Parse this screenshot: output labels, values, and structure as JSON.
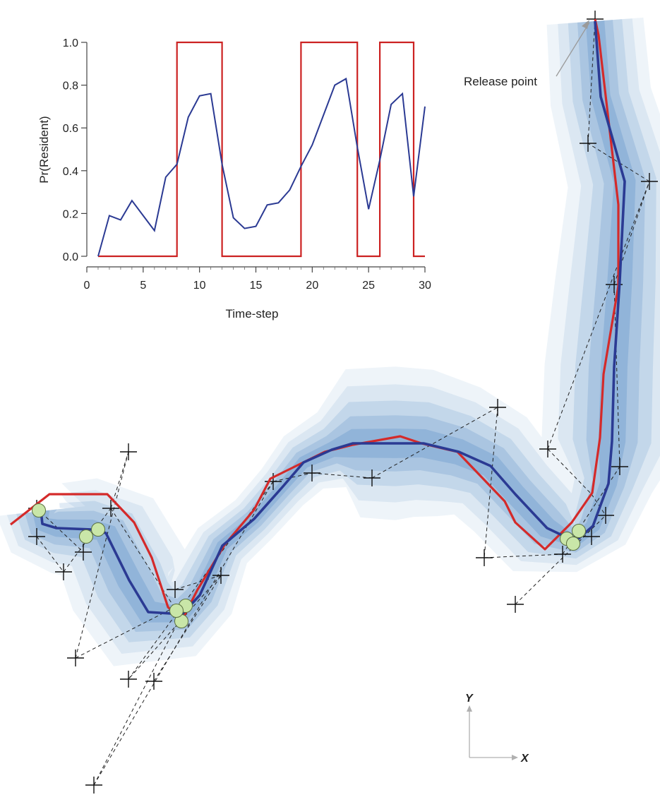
{
  "inset": {
    "xlabel": "Time-step",
    "ylabel": "Pr(Resident)"
  },
  "map": {
    "annotation": "Release point",
    "axis_x": "X",
    "axis_y": "Y"
  },
  "colors": {
    "probability_line": "#2b3a93",
    "state_line": "#cc2222",
    "track_estimate": "#2b3a93",
    "track_true": "#d42a2a",
    "confidence_band": "#5b8fc6",
    "observation_marker": "#111111",
    "resident_marker_fill": "#c9e6a8"
  },
  "chart_data": [
    {
      "type": "line",
      "xlabel": "Time-step",
      "ylabel": "Pr(Resident)",
      "xlim": [
        0,
        31
      ],
      "ylim": [
        0,
        1.05
      ],
      "xticks": [
        "0",
        "5",
        "10",
        "15",
        "20",
        "25",
        "30"
      ],
      "yticks": [
        "0.0",
        "0.2",
        "0.4",
        "0.6",
        "0.8",
        "1.0"
      ],
      "series": [
        {
          "style": "estimated probability",
          "color": "#2b3a93",
          "x": [
            1,
            2,
            3,
            4,
            5,
            6,
            7,
            8,
            9,
            10,
            11,
            12,
            13,
            14,
            15,
            16,
            17,
            18,
            19,
            20,
            21,
            22,
            23,
            24,
            25,
            26,
            27,
            28,
            29,
            30
          ],
          "y": [
            0.0,
            0.19,
            0.17,
            0.26,
            0.19,
            0.12,
            0.37,
            0.43,
            0.65,
            0.75,
            0.76,
            0.43,
            0.18,
            0.13,
            0.14,
            0.24,
            0.25,
            0.31,
            0.42,
            0.52,
            0.66,
            0.8,
            0.83,
            0.51,
            0.22,
            0.45,
            0.71,
            0.76,
            0.28,
            0.7
          ]
        },
        {
          "style": "true state (step)",
          "color": "#cc2222",
          "x": [
            1,
            8,
            8,
            12,
            12,
            19,
            19,
            24,
            24,
            26,
            26,
            29,
            29,
            30
          ],
          "y": [
            0,
            0,
            1,
            1,
            0,
            0,
            1,
            1,
            0,
            0,
            1,
            1,
            0,
            0
          ]
        }
      ]
    },
    {
      "type": "scatter",
      "xlabel": "X",
      "ylabel": "Y",
      "annotations": [
        "Release point"
      ],
      "series": [
        {
          "role": "observations",
          "points": [
            [
              843,
              27
            ],
            [
              833,
              203
            ],
            [
              920,
              257
            ],
            [
              870,
              403
            ],
            [
              705,
              577
            ],
            [
              776,
              636
            ],
            [
              878,
              661
            ],
            [
              858,
              730
            ],
            [
              838,
              760
            ],
            [
              797,
              785
            ],
            [
              686,
              790
            ],
            [
              730,
              856
            ],
            [
              527,
              677
            ],
            [
              442,
              670
            ],
            [
              387,
              682
            ],
            [
              313,
              815
            ],
            [
              248,
              835
            ],
            [
              182,
              640
            ],
            [
              157,
              720
            ],
            [
              52,
              720
            ],
            [
              52,
              760
            ],
            [
              118,
              782
            ],
            [
              90,
              810
            ],
            [
              107,
              932
            ],
            [
              182,
              962
            ],
            [
              218,
              965
            ],
            [
              133,
              1112
            ]
          ]
        },
        {
          "role": "estimated track",
          "points": [
            [
              843,
              30
            ],
            [
              851,
              137
            ],
            [
              885,
              257
            ],
            [
              878,
              397
            ],
            [
              870,
              520
            ],
            [
              867,
              625
            ],
            [
              862,
              685
            ],
            [
              840,
              745
            ],
            [
              815,
              767
            ],
            [
              775,
              748
            ],
            [
              730,
              700
            ],
            [
              695,
              660
            ],
            [
              650,
              640
            ],
            [
              600,
              628
            ],
            [
              560,
              628
            ],
            [
              500,
              628
            ],
            [
              470,
              637
            ],
            [
              430,
              655
            ],
            [
              400,
              690
            ],
            [
              360,
              735
            ],
            [
              315,
              773
            ],
            [
              283,
              843
            ],
            [
              258,
              870
            ],
            [
              210,
              867
            ],
            [
              183,
              822
            ],
            [
              150,
              755
            ],
            [
              130,
              750
            ],
            [
              80,
              748
            ],
            [
              60,
              742
            ],
            [
              58,
              724
            ]
          ]
        },
        {
          "role": "true track",
          "points": [
            [
              843,
              27
            ],
            [
              848,
              50
            ],
            [
              857,
              127
            ],
            [
              876,
              290
            ],
            [
              876,
              405
            ],
            [
              855,
              530
            ],
            [
              850,
              620
            ],
            [
              839,
              698
            ],
            [
              810,
              740
            ],
            [
              772,
              778
            ],
            [
              730,
              740
            ],
            [
              715,
              710
            ],
            [
              648,
              640
            ],
            [
              597,
              628
            ],
            [
              567,
              618
            ],
            [
              500,
              630
            ],
            [
              460,
              640
            ],
            [
              383,
              678
            ],
            [
              360,
              722
            ],
            [
              318,
              772
            ],
            [
              280,
              835
            ],
            [
              258,
              878
            ],
            [
              238,
              860
            ],
            [
              215,
              790
            ],
            [
              190,
              740
            ],
            [
              152,
              700
            ],
            [
              70,
              700
            ],
            [
              15,
              743
            ]
          ]
        },
        {
          "role": "resident locations",
          "points": [
            [
              55,
              723
            ],
            [
              122,
              760
            ],
            [
              139,
              750
            ],
            [
              263,
              858
            ],
            [
              257,
              880
            ],
            [
              250,
              865
            ],
            [
              803,
              763
            ],
            [
              812,
              770
            ],
            [
              820,
              752
            ]
          ]
        }
      ]
    }
  ]
}
